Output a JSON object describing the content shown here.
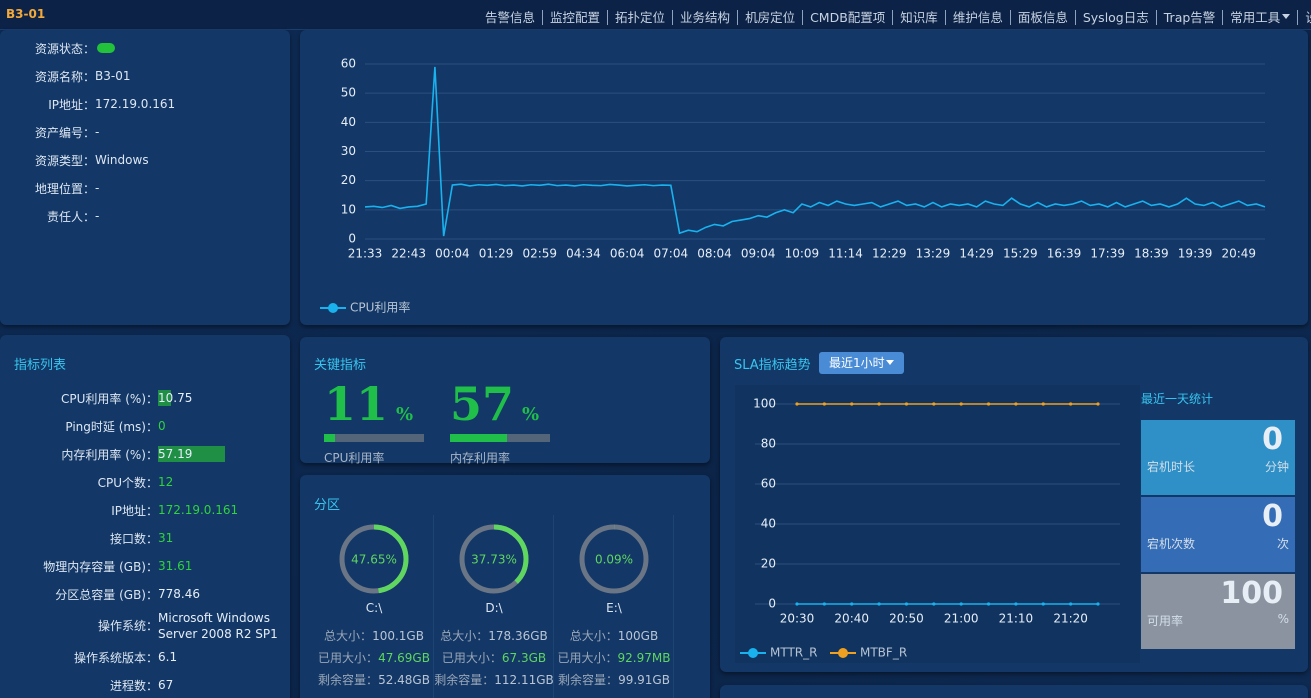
{
  "header": {
    "title": "B3-01",
    "nav": [
      "告警信息",
      "监控配置",
      "拓扑定位",
      "业务结构",
      "机房定位",
      "CMDB配置项",
      "知识库",
      "维护信息",
      "面板信息",
      "Syslog日志",
      "Trap告警",
      "常用工具",
      "设置"
    ]
  },
  "resource": {
    "rows": [
      {
        "label": "资源状态："
      },
      {
        "label": "资源名称：",
        "value": "B3-01"
      },
      {
        "label": "IP地址：",
        "value": "172.19.0.161"
      },
      {
        "label": "资产编号：",
        "value": "-"
      },
      {
        "label": "资源类型：",
        "value": "Windows"
      },
      {
        "label": "地理位置：",
        "value": "-"
      },
      {
        "label": "责任人：",
        "value": "-"
      }
    ]
  },
  "metrics": {
    "title": "指标列表",
    "bar_color": "#1f8f46",
    "rows": [
      {
        "label": "CPU利用率 (%)：",
        "value": 10.75,
        "bar": true
      },
      {
        "label": "Ping时延 (ms)：",
        "value": 0,
        "color": "#2fd33e"
      },
      {
        "label": "内存利用率 (%)：",
        "value": 57.19,
        "bar": true
      },
      {
        "label": "CPU个数：",
        "value": 12,
        "color": "#2fd33e"
      },
      {
        "label": "IP地址：",
        "value": "172.19.0.161",
        "color": "#2fd33e"
      },
      {
        "label": "接口数：",
        "value": 31,
        "color": "#2fd33e"
      },
      {
        "label": "物理内存容量 (GB)：",
        "value": 31.61,
        "color": "#2fd33e"
      },
      {
        "label": "分区总容量 (GB)：",
        "value": 778.46
      },
      {
        "label": "操作系统：",
        "value": "Microsoft Windows Server 2008 R2 SP1"
      },
      {
        "label": "操作系统版本：",
        "value": 6.1
      },
      {
        "label": "进程数：",
        "value": 67
      }
    ]
  },
  "key_metrics": {
    "title": "关键指标",
    "unit": "%",
    "color": "#1fbf4a",
    "items": [
      {
        "label": "CPU利用率",
        "value": 11
      },
      {
        "label": "内存利用率",
        "value": 57
      }
    ]
  },
  "partitions": {
    "title": "分区",
    "color": "#5fd65f",
    "field_labels": [
      "总大小：",
      "已用大小：",
      "剩余容量："
    ],
    "items": [
      {
        "name": "C:\\",
        "value": 47.65,
        "value_label": "47.65%",
        "sizes": [
          "100.1GB",
          "47.69GB",
          "52.48GB"
        ]
      },
      {
        "name": "D:\\",
        "value": 37.73,
        "value_label": "37.73%",
        "sizes": [
          "178.36GB",
          "67.3GB",
          "112.11GB"
        ]
      },
      {
        "name": "E:\\",
        "value": 0.09,
        "value_label": "0.09%",
        "sizes": [
          "100GB",
          "92.97MB",
          "99.91GB"
        ]
      }
    ]
  },
  "sla_panel": {
    "range": "最近1小时"
  },
  "daily_stats": {
    "title": "最近一天统计",
    "items": [
      {
        "label": "宕机时长",
        "value": 0,
        "unit": "分钟",
        "color": "#2e90c6"
      },
      {
        "label": "宕机次数",
        "value": 0,
        "unit": "次",
        "color": "#356cb6"
      },
      {
        "label": "可用率",
        "value": 100,
        "unit": "%",
        "color": "#8a939f"
      }
    ]
  },
  "chart_data": [
    {
      "type": "line",
      "grid": true,
      "legend": "bottom-left",
      "ylim": [
        0,
        60
      ],
      "yticks": [
        0,
        10,
        20,
        30,
        40,
        50,
        60
      ],
      "categories": [
        "21:33",
        null,
        null,
        null,
        null,
        "22:43",
        null,
        null,
        null,
        null,
        "00:04",
        null,
        null,
        null,
        null,
        "01:29",
        null,
        null,
        null,
        null,
        "02:59",
        null,
        null,
        null,
        null,
        "04:34",
        null,
        null,
        null,
        null,
        "06:04",
        null,
        null,
        null,
        null,
        "07:04",
        null,
        null,
        null,
        null,
        "08:04",
        null,
        null,
        null,
        null,
        "09:04",
        null,
        null,
        null,
        null,
        "10:09",
        null,
        null,
        null,
        null,
        "11:14",
        null,
        null,
        null,
        null,
        "12:29",
        null,
        null,
        null,
        null,
        "13:29",
        null,
        null,
        null,
        null,
        "14:29",
        null,
        null,
        null,
        null,
        "15:29",
        null,
        null,
        null,
        null,
        "16:39",
        null,
        null,
        null,
        null,
        "17:39",
        null,
        null,
        null,
        null,
        "18:39",
        null,
        null,
        null,
        null,
        "19:39",
        null,
        null,
        null,
        null,
        "20:49",
        null,
        null,
        null
      ],
      "series": [
        {
          "name": "CPU利用率",
          "color": "#19b2ee",
          "values": [
            11,
            11.2,
            10.8,
            11.5,
            10.5,
            11,
            11.2,
            12,
            59,
            1,
            18.5,
            18.8,
            18.2,
            18.6,
            18.4,
            18.7,
            18.3,
            18.5,
            18.2,
            18.6,
            18.4,
            18.8,
            18.3,
            18.5,
            18.2,
            18.6,
            18.4,
            18.3,
            18.7,
            18.5,
            18.2,
            18.4,
            18.6,
            18.3,
            18.5,
            18.4,
            2,
            3,
            2.5,
            4,
            5,
            4.5,
            6,
            6.5,
            7,
            8,
            7.5,
            9,
            10,
            9,
            12,
            11,
            12.5,
            11.5,
            13,
            12,
            11.5,
            12,
            12.5,
            11,
            12,
            13,
            11.5,
            12,
            11,
            12.5,
            11,
            12,
            11.5,
            12,
            11,
            13,
            12,
            11.5,
            14,
            12,
            11,
            12.5,
            11,
            12,
            11.5,
            12,
            13,
            11.5,
            12,
            11,
            12.5,
            11,
            12,
            13,
            11.5,
            12,
            11,
            12,
            14,
            12,
            11.5,
            12.5,
            11,
            12,
            13,
            11.5,
            12,
            11
          ]
        }
      ]
    },
    {
      "type": "line",
      "title": "SLA指标趋势",
      "grid": true,
      "markers": true,
      "legend": "bottom-left",
      "ylim": [
        0,
        100
      ],
      "yticks": [
        0,
        20,
        40,
        60,
        80,
        100
      ],
      "categories": [
        "20:30",
        null,
        "20:40",
        null,
        "20:50",
        null,
        "21:00",
        null,
        "21:10",
        null,
        "21:20",
        null
      ],
      "series": [
        {
          "name": "MTTR_R",
          "color": "#19b2ee",
          "values": [
            0,
            0,
            0,
            0,
            0,
            0,
            0,
            0,
            0,
            0,
            0,
            0
          ]
        },
        {
          "name": "MTBF_R",
          "color": "#f0a020",
          "values": [
            100,
            100,
            100,
            100,
            100,
            100,
            100,
            100,
            100,
            100,
            100,
            100
          ]
        }
      ]
    }
  ]
}
